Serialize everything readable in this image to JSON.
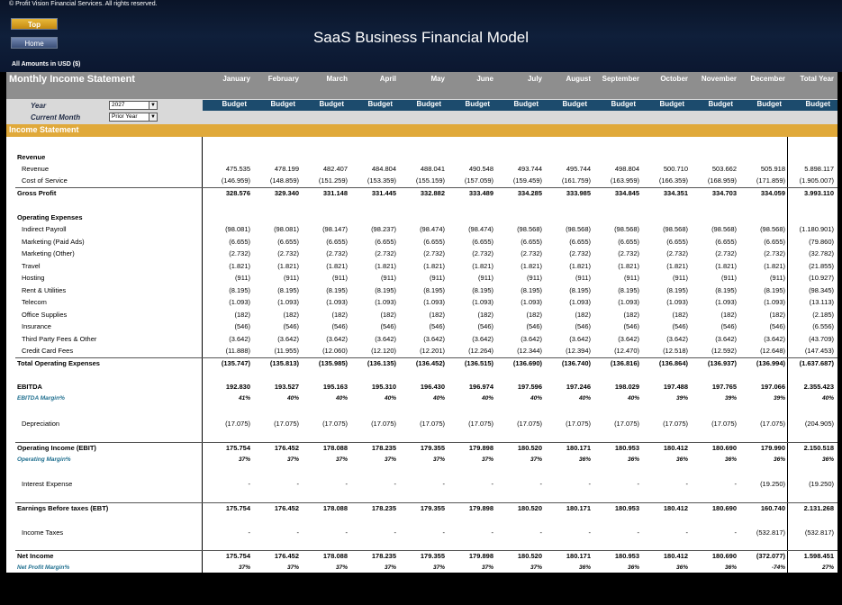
{
  "copyright": "© Profit Vision Financial Services. All rights reserved.",
  "nav": {
    "top_label": "Top",
    "home_label": "Home"
  },
  "title": "SaaS Business Financial Model",
  "amounts_note": "All Amounts in  USD ($)",
  "sheet_title": "Monthly Income Statement",
  "months": [
    "January",
    "February",
    "March",
    "April",
    "May",
    "June",
    "July",
    "August",
    "September",
    "October",
    "November",
    "December",
    "Total Year"
  ],
  "budget_label": "Budget",
  "controls": {
    "year_label": "Year",
    "year_value": "2027",
    "current_month_label": "Current Month",
    "current_month_value": "Prior Year"
  },
  "section_title": "Income Statement",
  "rows": [
    {
      "label": "Revenue",
      "type": "header"
    },
    {
      "label": "Revenue",
      "type": "item",
      "values": [
        "475.535",
        "478.199",
        "482.407",
        "484.804",
        "488.041",
        "490.548",
        "493.744",
        "495.744",
        "498.804",
        "500.710",
        "503.662",
        "505.918",
        "5.898.117"
      ]
    },
    {
      "label": "Cost of Service",
      "type": "item",
      "values": [
        "(146.959)",
        "(148.859)",
        "(151.259)",
        "(153.359)",
        "(155.159)",
        "(157.059)",
        "(159.459)",
        "(161.759)",
        "(163.959)",
        "(166.359)",
        "(168.959)",
        "(171.859)",
        "(1.905.007)"
      ]
    },
    {
      "label": "Gross Profit",
      "type": "total",
      "values": [
        "328.576",
        "329.340",
        "331.148",
        "331.445",
        "332.882",
        "333.489",
        "334.285",
        "333.985",
        "334.845",
        "334.351",
        "334.703",
        "334.059",
        "3.993.110"
      ]
    },
    {
      "label": "Operating Expenses",
      "type": "header"
    },
    {
      "label": "Indirect Payroll",
      "type": "item",
      "values": [
        "(98.081)",
        "(98.081)",
        "(98.147)",
        "(98.237)",
        "(98.474)",
        "(98.474)",
        "(98.568)",
        "(98.568)",
        "(98.568)",
        "(98.568)",
        "(98.568)",
        "(98.568)",
        "(1.180.901)"
      ]
    },
    {
      "label": "Marketing (Paid Ads)",
      "type": "item",
      "values": [
        "(6.655)",
        "(6.655)",
        "(6.655)",
        "(6.655)",
        "(6.655)",
        "(6.655)",
        "(6.655)",
        "(6.655)",
        "(6.655)",
        "(6.655)",
        "(6.655)",
        "(6.655)",
        "(79.860)"
      ]
    },
    {
      "label": "Marketing (Other)",
      "type": "item",
      "values": [
        "(2.732)",
        "(2.732)",
        "(2.732)",
        "(2.732)",
        "(2.732)",
        "(2.732)",
        "(2.732)",
        "(2.732)",
        "(2.732)",
        "(2.732)",
        "(2.732)",
        "(2.732)",
        "(32.782)"
      ]
    },
    {
      "label": "Travel",
      "type": "item",
      "values": [
        "(1.821)",
        "(1.821)",
        "(1.821)",
        "(1.821)",
        "(1.821)",
        "(1.821)",
        "(1.821)",
        "(1.821)",
        "(1.821)",
        "(1.821)",
        "(1.821)",
        "(1.821)",
        "(21.855)"
      ]
    },
    {
      "label": "Hosting",
      "type": "item",
      "values": [
        "(911)",
        "(911)",
        "(911)",
        "(911)",
        "(911)",
        "(911)",
        "(911)",
        "(911)",
        "(911)",
        "(911)",
        "(911)",
        "(911)",
        "(10.927)"
      ]
    },
    {
      "label": "Rent & Utilities",
      "type": "item",
      "values": [
        "(8.195)",
        "(8.195)",
        "(8.195)",
        "(8.195)",
        "(8.195)",
        "(8.195)",
        "(8.195)",
        "(8.195)",
        "(8.195)",
        "(8.195)",
        "(8.195)",
        "(8.195)",
        "(98.345)"
      ]
    },
    {
      "label": "Telecom",
      "type": "item",
      "values": [
        "(1.093)",
        "(1.093)",
        "(1.093)",
        "(1.093)",
        "(1.093)",
        "(1.093)",
        "(1.093)",
        "(1.093)",
        "(1.093)",
        "(1.093)",
        "(1.093)",
        "(1.093)",
        "(13.113)"
      ]
    },
    {
      "label": "Office Supplies",
      "type": "item",
      "values": [
        "(182)",
        "(182)",
        "(182)",
        "(182)",
        "(182)",
        "(182)",
        "(182)",
        "(182)",
        "(182)",
        "(182)",
        "(182)",
        "(182)",
        "(2.185)"
      ]
    },
    {
      "label": "Insurance",
      "type": "item",
      "values": [
        "(546)",
        "(546)",
        "(546)",
        "(546)",
        "(546)",
        "(546)",
        "(546)",
        "(546)",
        "(546)",
        "(546)",
        "(546)",
        "(546)",
        "(6.556)"
      ]
    },
    {
      "label": "Third Party Fees & Other",
      "type": "item",
      "values": [
        "(3.642)",
        "(3.642)",
        "(3.642)",
        "(3.642)",
        "(3.642)",
        "(3.642)",
        "(3.642)",
        "(3.642)",
        "(3.642)",
        "(3.642)",
        "(3.642)",
        "(3.642)",
        "(43.709)"
      ]
    },
    {
      "label": "Credit Card Fees",
      "type": "item",
      "values": [
        "(11.888)",
        "(11.955)",
        "(12.060)",
        "(12.120)",
        "(12.201)",
        "(12.264)",
        "(12.344)",
        "(12.394)",
        "(12.470)",
        "(12.518)",
        "(12.592)",
        "(12.648)",
        "(147.453)"
      ]
    },
    {
      "label": "Total Operating Expenses",
      "type": "total",
      "values": [
        "(135.747)",
        "(135.813)",
        "(135.985)",
        "(136.135)",
        "(136.452)",
        "(136.515)",
        "(136.690)",
        "(136.740)",
        "(136.816)",
        "(136.864)",
        "(136.937)",
        "(136.994)",
        "(1.637.687)"
      ]
    },
    {
      "label": "EBITDA",
      "type": "total",
      "values": [
        "192.830",
        "193.527",
        "195.163",
        "195.310",
        "196.430",
        "196.974",
        "197.596",
        "197.246",
        "198.029",
        "197.488",
        "197.765",
        "197.066",
        "2.355.423"
      ]
    },
    {
      "label": "EBITDA Margin%",
      "type": "margin",
      "values": [
        "41%",
        "40%",
        "40%",
        "40%",
        "40%",
        "40%",
        "40%",
        "40%",
        "40%",
        "39%",
        "39%",
        "39%",
        "40%"
      ]
    },
    {
      "label": "Depreciation",
      "type": "item",
      "values": [
        "(17.075)",
        "(17.075)",
        "(17.075)",
        "(17.075)",
        "(17.075)",
        "(17.075)",
        "(17.075)",
        "(17.075)",
        "(17.075)",
        "(17.075)",
        "(17.075)",
        "(17.075)",
        "(204.905)"
      ]
    },
    {
      "label": "Operating Income (EBIT)",
      "type": "total",
      "values": [
        "175.754",
        "176.452",
        "178.088",
        "178.235",
        "179.355",
        "179.898",
        "180.520",
        "180.171",
        "180.953",
        "180.412",
        "180.690",
        "179.990",
        "2.150.518"
      ]
    },
    {
      "label": "Operating Margin%",
      "type": "margin",
      "values": [
        "37%",
        "37%",
        "37%",
        "37%",
        "37%",
        "37%",
        "37%",
        "36%",
        "36%",
        "36%",
        "36%",
        "36%",
        "36%"
      ]
    },
    {
      "label": "Interest Expense",
      "type": "item",
      "values": [
        "-",
        "-",
        "-",
        "-",
        "-",
        "-",
        "-",
        "-",
        "-",
        "-",
        "-",
        "(19.250)",
        "(19.250)"
      ]
    },
    {
      "label": "Earnings Before taxes (EBT)",
      "type": "total",
      "values": [
        "175.754",
        "176.452",
        "178.088",
        "178.235",
        "179.355",
        "179.898",
        "180.520",
        "180.171",
        "180.953",
        "180.412",
        "180.690",
        "160.740",
        "2.131.268"
      ]
    },
    {
      "label": "Income Taxes",
      "type": "item",
      "values": [
        "-",
        "-",
        "-",
        "-",
        "-",
        "-",
        "-",
        "-",
        "-",
        "-",
        "-",
        "(532.817)",
        "(532.817)"
      ]
    },
    {
      "label": "Net Income",
      "type": "total",
      "values": [
        "175.754",
        "176.452",
        "178.088",
        "178.235",
        "179.355",
        "179.898",
        "180.520",
        "180.171",
        "180.953",
        "180.412",
        "180.690",
        "(372.077)",
        "1.598.451"
      ]
    },
    {
      "label": "Net Profit Margin%",
      "type": "margin",
      "values": [
        "37%",
        "37%",
        "37%",
        "37%",
        "37%",
        "37%",
        "37%",
        "36%",
        "36%",
        "36%",
        "36%",
        "-74%",
        "27%"
      ]
    }
  ]
}
